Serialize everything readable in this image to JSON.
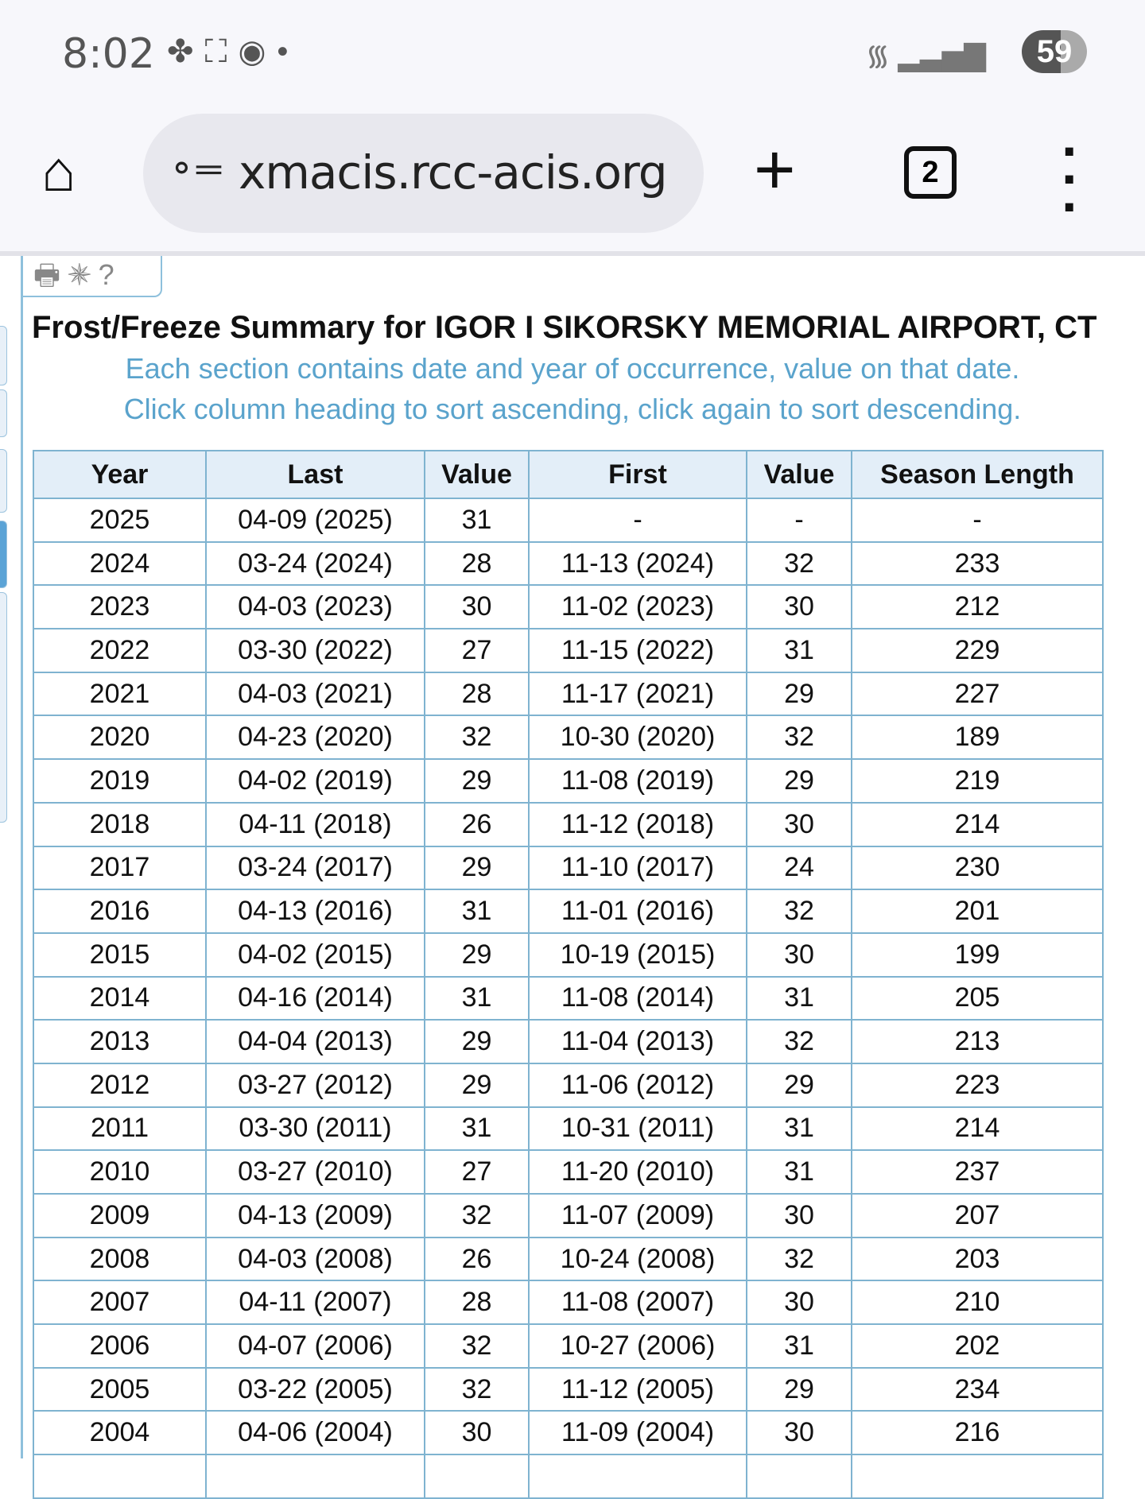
{
  "status_bar": {
    "time": "8:02",
    "battery": "59",
    "notification_icons": [
      "pinwheel-icon",
      "screenshot-icon",
      "chrome-icon",
      "dot-icon"
    ]
  },
  "browser": {
    "url": "xmacis.rcc-acis.org",
    "tab_count": "2"
  },
  "toolbar": {
    "icons": [
      "print-icon",
      "gear-icon",
      "help-icon"
    ]
  },
  "page": {
    "title": "Frost/Freeze Summary for IGOR I SIKORSKY MEMORIAL AIRPORT, CT",
    "subtitle1": "Each section contains date and year of occurrence, value on that date.",
    "subtitle2": "Click column heading to sort ascending, click again to sort descending."
  },
  "table": {
    "headers": [
      "Year",
      "Last",
      "Value",
      "First",
      "Value",
      "Season Length"
    ],
    "rows": [
      [
        "2025",
        "04-09 (2025)",
        "31",
        "-",
        "-",
        "-"
      ],
      [
        "2024",
        "03-24 (2024)",
        "28",
        "11-13 (2024)",
        "32",
        "233"
      ],
      [
        "2023",
        "04-03 (2023)",
        "30",
        "11-02 (2023)",
        "30",
        "212"
      ],
      [
        "2022",
        "03-30 (2022)",
        "27",
        "11-15 (2022)",
        "31",
        "229"
      ],
      [
        "2021",
        "04-03 (2021)",
        "28",
        "11-17 (2021)",
        "29",
        "227"
      ],
      [
        "2020",
        "04-23 (2020)",
        "32",
        "10-30 (2020)",
        "32",
        "189"
      ],
      [
        "2019",
        "04-02 (2019)",
        "29",
        "11-08 (2019)",
        "29",
        "219"
      ],
      [
        "2018",
        "04-11 (2018)",
        "26",
        "11-12 (2018)",
        "30",
        "214"
      ],
      [
        "2017",
        "03-24 (2017)",
        "29",
        "11-10 (2017)",
        "24",
        "230"
      ],
      [
        "2016",
        "04-13 (2016)",
        "31",
        "11-01 (2016)",
        "32",
        "201"
      ],
      [
        "2015",
        "04-02 (2015)",
        "29",
        "10-19 (2015)",
        "30",
        "199"
      ],
      [
        "2014",
        "04-16 (2014)",
        "31",
        "11-08 (2014)",
        "31",
        "205"
      ],
      [
        "2013",
        "04-04 (2013)",
        "29",
        "11-04 (2013)",
        "32",
        "213"
      ],
      [
        "2012",
        "03-27 (2012)",
        "29",
        "11-06 (2012)",
        "29",
        "223"
      ],
      [
        "2011",
        "03-30 (2011)",
        "31",
        "10-31 (2011)",
        "31",
        "214"
      ],
      [
        "2010",
        "03-27 (2010)",
        "27",
        "11-20 (2010)",
        "31",
        "237"
      ],
      [
        "2009",
        "04-13 (2009)",
        "32",
        "11-07 (2009)",
        "30",
        "207"
      ],
      [
        "2008",
        "04-03 (2008)",
        "26",
        "10-24 (2008)",
        "32",
        "203"
      ],
      [
        "2007",
        "04-11 (2007)",
        "28",
        "11-08 (2007)",
        "30",
        "210"
      ],
      [
        "2006",
        "04-07 (2006)",
        "32",
        "10-27 (2006)",
        "31",
        "202"
      ],
      [
        "2005",
        "03-22 (2005)",
        "32",
        "11-12 (2005)",
        "29",
        "234"
      ],
      [
        "2004",
        "04-06 (2004)",
        "30",
        "11-09 (2004)",
        "30",
        "216"
      ]
    ]
  }
}
